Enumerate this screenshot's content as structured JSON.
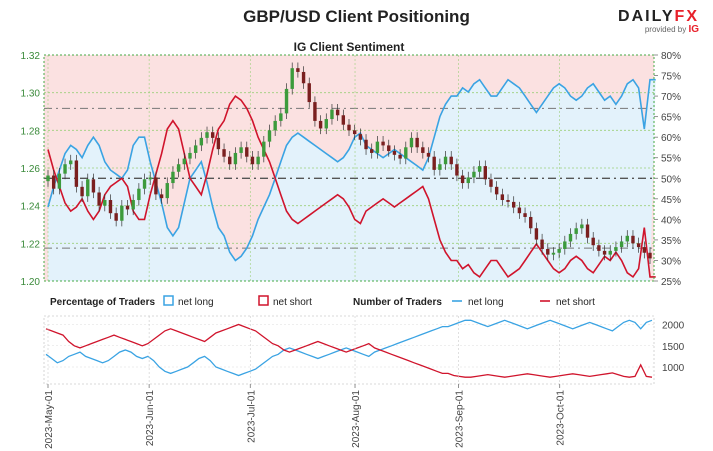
{
  "header": {
    "title": "GBP/USD Client Positioning",
    "brand_main": "DAILY",
    "brand_accent": "FX",
    "brand_sub": "provided by",
    "brand_ig": "IG"
  },
  "chart_data": [
    {
      "type": "candlestick",
      "title": "IG Client Sentiment",
      "price_axis": {
        "ticks": [
          "1.32",
          "1.30",
          "1.28",
          "1.26",
          "1.24",
          "1.22",
          "1.20"
        ],
        "range": [
          1.2,
          1.32
        ]
      },
      "percent_axis": {
        "ticks": [
          "80%",
          "75%",
          "70%",
          "65%",
          "60%",
          "55%",
          "50%",
          "45%",
          "40%",
          "35%",
          "30%",
          "25%"
        ],
        "range": [
          25,
          80
        ]
      },
      "price_close": [
        1.256,
        1.249,
        1.257,
        1.262,
        1.264,
        1.25,
        1.245,
        1.254,
        1.247,
        1.24,
        1.243,
        1.236,
        1.232,
        1.24,
        1.238,
        1.243,
        1.249,
        1.254,
        1.255,
        1.246,
        1.244,
        1.252,
        1.258,
        1.262,
        1.265,
        1.268,
        1.272,
        1.276,
        1.279,
        1.276,
        1.27,
        1.266,
        1.262,
        1.268,
        1.271,
        1.266,
        1.262,
        1.266,
        1.274,
        1.28,
        1.285,
        1.289,
        1.302,
        1.313,
        1.311,
        1.305,
        1.295,
        1.285,
        1.281,
        1.286,
        1.291,
        1.288,
        1.283,
        1.28,
        1.278,
        1.275,
        1.27,
        1.268,
        1.274,
        1.272,
        1.269,
        1.267,
        1.265,
        1.271,
        1.276,
        1.271,
        1.268,
        1.266,
        1.259,
        1.262,
        1.266,
        1.262,
        1.256,
        1.252,
        1.255,
        1.258,
        1.261,
        1.254,
        1.25,
        1.246,
        1.243,
        1.242,
        1.239,
        1.236,
        1.234,
        1.228,
        1.222,
        1.217,
        1.214,
        1.215,
        1.217,
        1.221,
        1.225,
        1.228,
        1.23,
        1.223,
        1.219,
        1.216,
        1.214,
        1.216,
        1.218,
        1.221,
        1.224,
        1.22,
        1.218,
        1.215,
        1.212
      ],
      "net_long_pct": [
        43,
        48,
        52,
        56,
        58,
        57,
        55,
        58,
        60,
        58,
        54,
        52,
        51,
        50,
        52,
        58,
        60,
        60,
        54,
        49,
        44,
        38,
        36,
        38,
        44,
        50,
        52,
        54,
        49,
        43,
        38,
        36,
        32,
        30,
        31,
        33,
        36,
        40,
        43,
        46,
        50,
        54,
        58,
        60,
        61,
        60,
        59,
        58,
        57,
        56,
        55,
        54,
        55,
        57,
        60,
        61,
        58,
        57,
        56,
        55,
        56,
        57,
        56,
        55,
        54,
        53,
        52,
        55,
        60,
        65,
        68,
        70,
        70,
        72,
        71,
        73,
        74,
        72,
        70,
        70,
        72,
        74,
        73,
        72,
        70,
        68,
        66,
        68,
        70,
        72,
        73,
        72,
        70,
        69,
        70,
        72,
        73,
        71,
        69,
        70,
        68,
        70,
        73,
        74,
        72,
        62,
        74,
        74
      ],
      "levels_dashed": [
        "50%",
        "67%",
        "33%"
      ]
    },
    {
      "type": "line",
      "legend_pct_title": "Percentage of Traders",
      "legend_num_title": "Number of Traders",
      "legend_items": [
        "net long",
        "net short",
        "net long",
        "net short"
      ],
      "y_ticks": [
        "2000",
        "1500",
        "1000"
      ],
      "y_range": [
        600,
        2200
      ],
      "x_ticks": [
        "2023-May-01",
        "2023-Jun-01",
        "2023-Jul-01",
        "2023-Aug-01",
        "2023-Sep-01",
        "2023-Oct-01"
      ],
      "series": [
        {
          "name": "net long",
          "values": [
            1300,
            1200,
            1100,
            1150,
            1250,
            1300,
            1350,
            1250,
            1200,
            1150,
            1100,
            1150,
            1250,
            1350,
            1400,
            1350,
            1250,
            1200,
            1250,
            1150,
            1000,
            900,
            850,
            900,
            950,
            1000,
            1100,
            1200,
            1250,
            1150,
            1000,
            950,
            900,
            850,
            800,
            850,
            900,
            950,
            1050,
            1150,
            1250,
            1300,
            1400,
            1450,
            1400,
            1350,
            1300,
            1250,
            1200,
            1250,
            1300,
            1350,
            1400,
            1450,
            1400,
            1350,
            1300,
            1250,
            1350,
            1400,
            1450,
            1500,
            1550,
            1600,
            1650,
            1700,
            1750,
            1800,
            1850,
            1900,
            1950,
            1950,
            2000,
            2050,
            2100,
            2100,
            2050,
            2000,
            1950,
            2000,
            2050,
            2100,
            2050,
            2000,
            1950,
            1900,
            1950,
            2000,
            2050,
            2100,
            2050,
            2000,
            1950,
            1900,
            1950,
            2000,
            2050,
            2000,
            1950,
            1900,
            1850,
            1950,
            2050,
            2100,
            2050,
            1900,
            2050,
            2100
          ]
        },
        {
          "name": "net short",
          "values": [
            1900,
            1850,
            1800,
            1750,
            1600,
            1500,
            1450,
            1500,
            1550,
            1600,
            1650,
            1700,
            1750,
            1700,
            1650,
            1600,
            1550,
            1500,
            1550,
            1650,
            1750,
            1850,
            1900,
            1850,
            1800,
            1750,
            1700,
            1650,
            1600,
            1700,
            1800,
            1850,
            1900,
            1950,
            2000,
            1950,
            1900,
            1850,
            1750,
            1650,
            1550,
            1500,
            1400,
            1350,
            1400,
            1450,
            1500,
            1550,
            1600,
            1550,
            1500,
            1450,
            1400,
            1350,
            1400,
            1450,
            1500,
            1550,
            1450,
            1400,
            1350,
            1300,
            1250,
            1200,
            1150,
            1100,
            1050,
            1000,
            950,
            900,
            850,
            850,
            800,
            780,
            760,
            760,
            780,
            800,
            820,
            800,
            780,
            760,
            780,
            800,
            820,
            840,
            820,
            800,
            780,
            760,
            780,
            800,
            820,
            840,
            820,
            800,
            780,
            800,
            820,
            840,
            860,
            820,
            780,
            760,
            780,
            1050,
            780,
            760
          ]
        }
      ]
    }
  ],
  "colors": {
    "long": "#3aa3e3",
    "short": "#d0142c",
    "bg_long": "#e3f2fb",
    "bg_short": "#fbe1e1",
    "candle_up": "#3c9b3c",
    "candle_down": "#7a1f1f",
    "frame": "#44aa44"
  }
}
